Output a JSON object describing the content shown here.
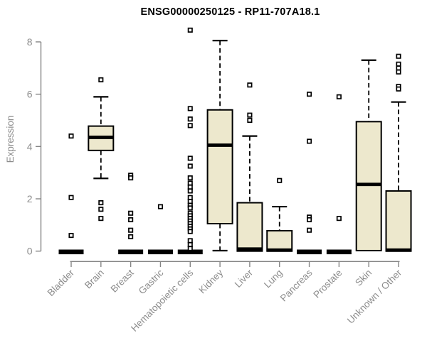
{
  "title": "ENSG00000250125 - RP11-707A18.1",
  "chart_data": {
    "type": "boxplot",
    "title": "ENSG00000250125 - RP11-707A18.1",
    "xlabel": "",
    "ylabel": "Expression",
    "ylim": [
      0,
      8.5
    ],
    "yticks": [
      0,
      2,
      4,
      6,
      8
    ],
    "grid": false,
    "legend": "none",
    "categories": [
      "Bladder",
      "Brain",
      "Breast",
      "Gastric",
      "Hematopoietic cells",
      "Kidney",
      "Liver",
      "Lung",
      "Pancreas",
      "Prostate",
      "Skin",
      "Unknown / Other"
    ],
    "series": [
      {
        "category": "Bladder",
        "median": 0,
        "q1": 0,
        "q3": 0,
        "whisker_low": 0,
        "whisker_high": 0,
        "outliers": [
          4.4,
          2.05,
          0.6
        ]
      },
      {
        "category": "Brain",
        "median": 4.35,
        "q1": 3.85,
        "q3": 4.78,
        "whisker_low": 2.78,
        "whisker_high": 5.9,
        "outliers": [
          6.55,
          1.85,
          1.6,
          1.25
        ]
      },
      {
        "category": "Breast",
        "median": 0,
        "q1": 0,
        "q3": 0,
        "whisker_low": 0,
        "whisker_high": 0,
        "outliers": [
          2.9,
          2.8,
          1.45,
          1.2,
          0.8,
          0.55
        ]
      },
      {
        "category": "Gastric",
        "median": 0,
        "q1": 0,
        "q3": 0,
        "whisker_low": 0,
        "whisker_high": 0,
        "outliers": [
          1.7
        ]
      },
      {
        "category": "Hematopoietic cells",
        "median": 0,
        "q1": 0,
        "q3": 0,
        "whisker_low": 0,
        "whisker_high": 0,
        "outliers": [
          8.45,
          5.45,
          5.05,
          4.8,
          3.55,
          3.25,
          2.8,
          2.6,
          2.45,
          2.3,
          2.05,
          1.9,
          1.75,
          1.65,
          1.45,
          1.35,
          1.25,
          1.15,
          1.05,
          0.95,
          0.85,
          0.75,
          0.4,
          0.25,
          0.1
        ]
      },
      {
        "category": "Kidney",
        "median": 4.05,
        "q1": 1.05,
        "q3": 5.4,
        "whisker_low": 0.02,
        "whisker_high": 8.05,
        "outliers": []
      },
      {
        "category": "Liver",
        "median": 0.08,
        "q1": 0,
        "q3": 1.85,
        "whisker_low": 0,
        "whisker_high": 4.4,
        "outliers": [
          6.35,
          5.2,
          5.0
        ]
      },
      {
        "category": "Lung",
        "median": 0.04,
        "q1": 0,
        "q3": 0.78,
        "whisker_low": 0,
        "whisker_high": 1.7,
        "outliers": [
          2.7
        ]
      },
      {
        "category": "Pancreas",
        "median": 0,
        "q1": 0,
        "q3": 0,
        "whisker_low": 0,
        "whisker_high": 0,
        "outliers": [
          6.0,
          4.2,
          1.3,
          1.2,
          0.8
        ]
      },
      {
        "category": "Prostate",
        "median": 0,
        "q1": 0,
        "q3": 0,
        "whisker_low": 0,
        "whisker_high": 0,
        "outliers": [
          5.9,
          1.25
        ]
      },
      {
        "category": "Skin",
        "median": 2.55,
        "q1": 0.02,
        "q3": 4.95,
        "whisker_low": 0.02,
        "whisker_high": 7.3,
        "outliers": []
      },
      {
        "category": "Unknown / Other",
        "median": 0.04,
        "q1": 0,
        "q3": 2.3,
        "whisker_low": 0,
        "whisker_high": 5.7,
        "outliers": [
          7.45,
          7.15,
          7.0,
          6.85,
          6.3,
          6.2
        ]
      }
    ],
    "colors": {
      "box_fill": "#EDE8CD",
      "box_stroke": "#000000",
      "median": "#000000",
      "axis": "#858585",
      "tick_label": "#8c8c8c",
      "title": "#000000",
      "background": "#ffffff"
    }
  }
}
